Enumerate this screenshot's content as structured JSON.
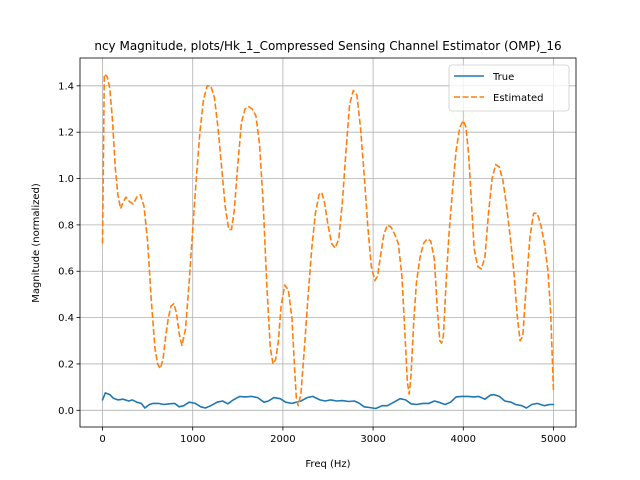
{
  "chart_data": {
    "type": "line",
    "title": "ncy Magnitude, plots/Hk_1_Compressed Sensing Channel Estimator (OMP)_16",
    "xlabel": "Freq (Hz)",
    "ylabel": "Magnitude (normalized)",
    "xlim": [
      -250,
      5250
    ],
    "ylim": [
      -0.072,
      1.52
    ],
    "xticks": [
      0,
      1000,
      2000,
      3000,
      4000,
      5000
    ],
    "yticks": [
      0.0,
      0.2,
      0.4,
      0.6,
      0.8,
      1.0,
      1.2,
      1.4
    ],
    "xtick_labels": [
      "0",
      "1000",
      "2000",
      "3000",
      "4000",
      "5000"
    ],
    "ytick_labels": [
      "0.0",
      "0.2",
      "0.4",
      "0.6",
      "0.8",
      "1.0",
      "1.2",
      "1.4"
    ],
    "grid": true,
    "legend_position": "top-right",
    "series": [
      {
        "name": "True",
        "color": "#1f77b4",
        "style": "solid",
        "x": [
          0,
          30,
          80,
          120,
          170,
          230,
          290,
          330,
          380,
          430,
          470,
          520,
          560,
          620,
          680,
          740,
          800,
          850,
          900,
          960,
          1030,
          1090,
          1140,
          1200,
          1270,
          1330,
          1390,
          1450,
          1520,
          1580,
          1650,
          1720,
          1790,
          1840,
          1900,
          1970,
          2030,
          2100,
          2150,
          2200,
          2270,
          2330,
          2410,
          2470,
          2530,
          2600,
          2660,
          2730,
          2790,
          2840,
          2900,
          2960,
          3030,
          3100,
          3160,
          3230,
          3300,
          3360,
          3420,
          3480,
          3550,
          3620,
          3680,
          3730,
          3800,
          3860,
          3920,
          3980,
          4050,
          4120,
          4170,
          4240,
          4300,
          4340,
          4400,
          4460,
          4530,
          4580,
          4650,
          4700,
          4760,
          4820,
          4900,
          4960,
          5000
        ],
        "y": [
          0.045,
          0.075,
          0.068,
          0.052,
          0.045,
          0.048,
          0.04,
          0.045,
          0.035,
          0.03,
          0.01,
          0.025,
          0.03,
          0.03,
          0.025,
          0.028,
          0.03,
          0.015,
          0.02,
          0.035,
          0.03,
          0.015,
          0.01,
          0.02,
          0.035,
          0.04,
          0.028,
          0.045,
          0.06,
          0.058,
          0.06,
          0.055,
          0.035,
          0.04,
          0.055,
          0.05,
          0.035,
          0.03,
          0.035,
          0.04,
          0.055,
          0.06,
          0.045,
          0.04,
          0.045,
          0.04,
          0.042,
          0.038,
          0.04,
          0.032,
          0.015,
          0.012,
          0.008,
          0.02,
          0.02,
          0.035,
          0.05,
          0.045,
          0.028,
          0.025,
          0.03,
          0.03,
          0.04,
          0.035,
          0.025,
          0.035,
          0.058,
          0.06,
          0.06,
          0.058,
          0.06,
          0.048,
          0.065,
          0.068,
          0.06,
          0.04,
          0.035,
          0.025,
          0.02,
          0.01,
          0.025,
          0.03,
          0.02,
          0.025,
          0.025
        ]
      },
      {
        "name": "Estimated",
        "color": "#ff7f0e",
        "style": "dashed",
        "x": [
          0,
          20,
          50,
          80,
          110,
          140,
          170,
          200,
          230,
          260,
          300,
          340,
          380,
          420,
          460,
          500,
          540,
          580,
          610,
          640,
          670,
          700,
          730,
          760,
          790,
          820,
          850,
          880,
          920,
          960,
          1000,
          1040,
          1080,
          1120,
          1160,
          1200,
          1240,
          1280,
          1320,
          1360,
          1400,
          1430,
          1460,
          1500,
          1540,
          1580,
          1620,
          1660,
          1700,
          1740,
          1780,
          1820,
          1860,
          1890,
          1920,
          1950,
          1980,
          2020,
          2060,
          2100,
          2130,
          2150,
          2170,
          2200,
          2240,
          2280,
          2320,
          2360,
          2400,
          2430,
          2460,
          2500,
          2540,
          2580,
          2620,
          2660,
          2700,
          2740,
          2780,
          2820,
          2860,
          2900,
          2940,
          2980,
          3020,
          3050,
          3080,
          3120,
          3160,
          3200,
          3240,
          3280,
          3320,
          3350,
          3380,
          3400,
          3420,
          3450,
          3480,
          3520,
          3560,
          3600,
          3640,
          3680,
          3710,
          3740,
          3760,
          3780,
          3810,
          3840,
          3880,
          3920,
          3960,
          4000,
          4030,
          4060,
          4090,
          4120,
          4160,
          4200,
          4240,
          4280,
          4320,
          4360,
          4400,
          4440,
          4480,
          4520,
          4560,
          4600,
          4630,
          4660,
          4700,
          4740,
          4780,
          4820,
          4860,
          4900,
          4940,
          4970,
          5000
        ],
        "y": [
          0.72,
          1.45,
          1.44,
          1.39,
          1.25,
          1.05,
          0.93,
          0.87,
          0.9,
          0.92,
          0.9,
          0.89,
          0.92,
          0.93,
          0.88,
          0.73,
          0.48,
          0.27,
          0.2,
          0.18,
          0.22,
          0.32,
          0.4,
          0.45,
          0.46,
          0.42,
          0.33,
          0.28,
          0.35,
          0.55,
          0.78,
          1.0,
          1.2,
          1.34,
          1.4,
          1.4,
          1.35,
          1.22,
          1.05,
          0.88,
          0.78,
          0.78,
          0.86,
          1.06,
          1.24,
          1.3,
          1.31,
          1.3,
          1.27,
          1.15,
          0.9,
          0.55,
          0.27,
          0.2,
          0.22,
          0.3,
          0.45,
          0.54,
          0.52,
          0.4,
          0.18,
          0.05,
          0.02,
          0.07,
          0.28,
          0.5,
          0.7,
          0.85,
          0.93,
          0.94,
          0.9,
          0.8,
          0.72,
          0.7,
          0.74,
          0.9,
          1.12,
          1.32,
          1.38,
          1.36,
          1.22,
          1.02,
          0.8,
          0.62,
          0.56,
          0.58,
          0.66,
          0.76,
          0.8,
          0.79,
          0.76,
          0.72,
          0.58,
          0.35,
          0.12,
          0.07,
          0.15,
          0.38,
          0.55,
          0.66,
          0.72,
          0.74,
          0.73,
          0.65,
          0.45,
          0.3,
          0.29,
          0.32,
          0.55,
          0.75,
          0.95,
          1.12,
          1.22,
          1.25,
          1.22,
          1.1,
          0.9,
          0.7,
          0.62,
          0.61,
          0.66,
          0.85,
          1.0,
          1.06,
          1.05,
          0.99,
          0.88,
          0.75,
          0.6,
          0.4,
          0.3,
          0.32,
          0.55,
          0.75,
          0.85,
          0.85,
          0.8,
          0.72,
          0.6,
          0.42,
          0.08
        ]
      }
    ]
  }
}
